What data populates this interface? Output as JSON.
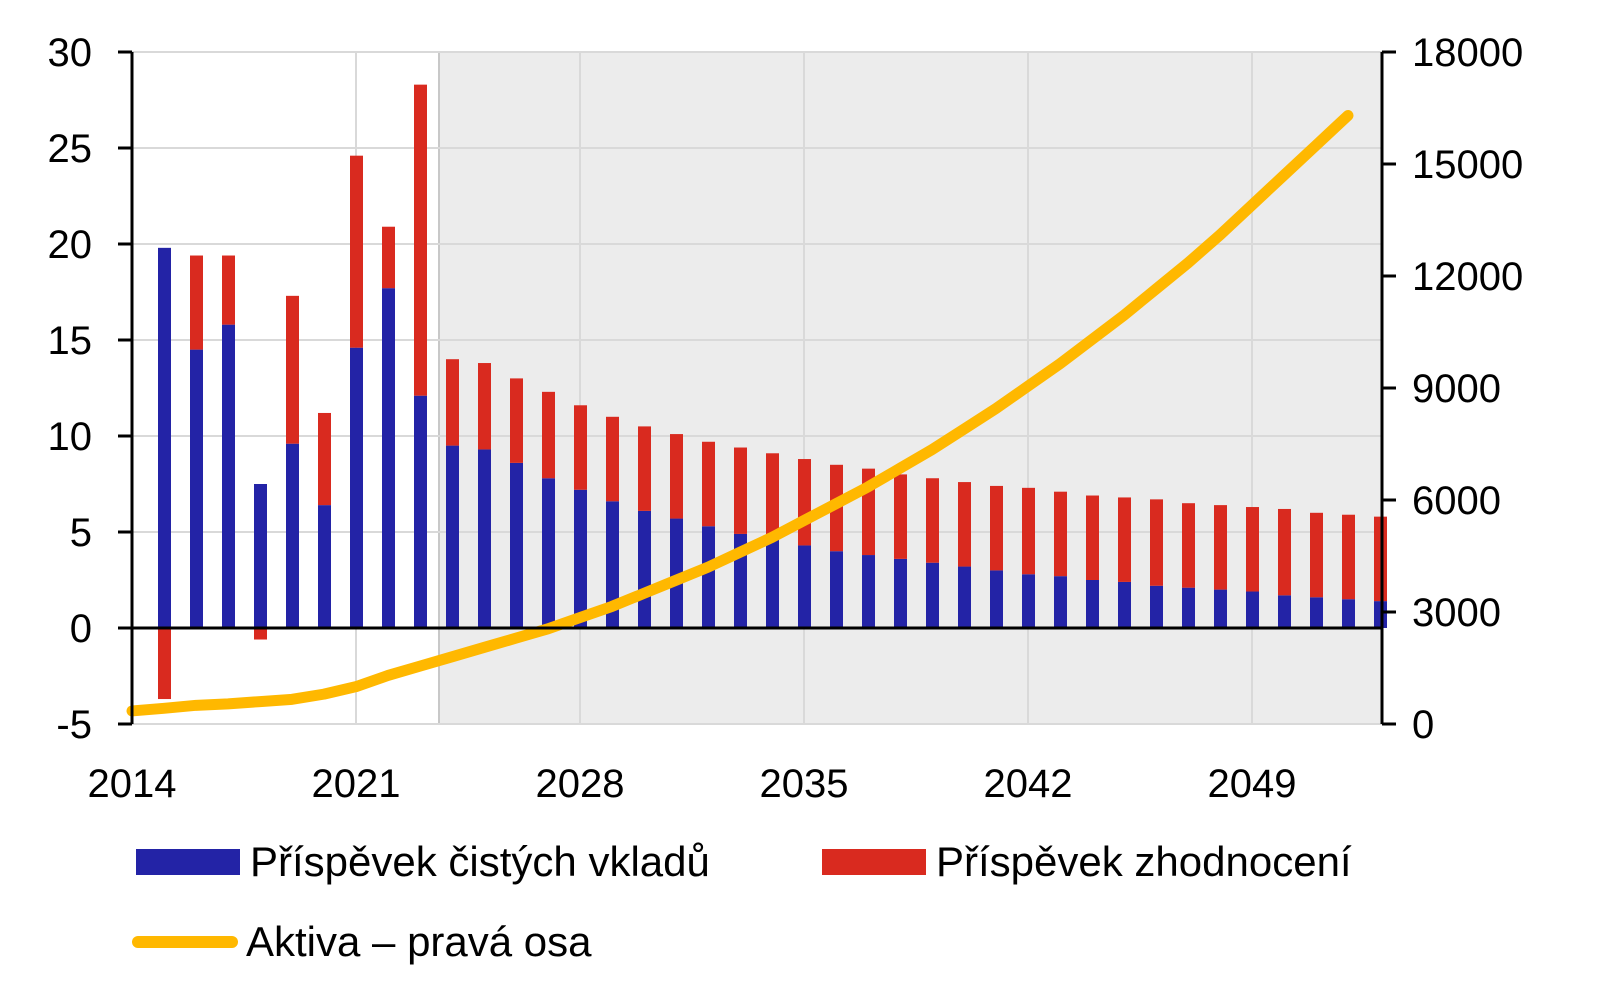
{
  "chart_data": {
    "type": "bar",
    "subtype": "stacked bar with line on secondary axis",
    "title": "",
    "xlabel": "",
    "ylabel": "",
    "ylabel_right": "",
    "ylim": [
      -5,
      30
    ],
    "ylim_right": [
      0,
      18000
    ],
    "yticks": [
      -5,
      0,
      5,
      10,
      15,
      20,
      25,
      30
    ],
    "yticks_right": [
      0,
      3000,
      6000,
      9000,
      12000,
      15000,
      18000
    ],
    "xticks": [
      "2014",
      "2021",
      "2028",
      "2035",
      "2042",
      "2049"
    ],
    "grid": true,
    "forecast_shading_start": 2024,
    "legend_position": "bottom",
    "categories": [
      2015,
      2016,
      2017,
      2018,
      2019,
      2020,
      2021,
      2022,
      2023,
      2024,
      2025,
      2026,
      2027,
      2028,
      2029,
      2030,
      2031,
      2032,
      2033,
      2034,
      2035,
      2036,
      2037,
      2038,
      2039,
      2040,
      2041,
      2042,
      2043,
      2044,
      2045,
      2046,
      2047,
      2048,
      2049,
      2050,
      2051,
      2052,
      2053
    ],
    "series": [
      {
        "name": "Příspěvek čistých vkladů",
        "type": "bar",
        "axis": "left",
        "color": "#2323a6",
        "values": [
          19.8,
          14.5,
          15.8,
          7.5,
          9.6,
          6.4,
          14.6,
          17.7,
          12.1,
          9.5,
          9.3,
          8.6,
          7.8,
          7.2,
          6.6,
          6.1,
          5.7,
          5.3,
          4.9,
          4.6,
          4.3,
          4.0,
          3.8,
          3.6,
          3.4,
          3.2,
          3.0,
          2.8,
          2.7,
          2.5,
          2.4,
          2.2,
          2.1,
          2.0,
          1.9,
          1.7,
          1.6,
          1.5,
          1.4
        ]
      },
      {
        "name": "Příspěvek zhodnocení",
        "type": "bar",
        "axis": "left",
        "color": "#d92a1f",
        "values": [
          -3.7,
          4.9,
          3.6,
          -0.6,
          7.7,
          4.8,
          10.0,
          3.2,
          16.2,
          4.5,
          4.5,
          4.4,
          4.5,
          4.4,
          4.4,
          4.4,
          4.4,
          4.4,
          4.5,
          4.5,
          4.5,
          4.5,
          4.5,
          4.4,
          4.4,
          4.4,
          4.4,
          4.5,
          4.4,
          4.4,
          4.4,
          4.5,
          4.4,
          4.4,
          4.4,
          4.5,
          4.4,
          4.4,
          4.4
        ]
      },
      {
        "name": "Aktiva – pravá osa",
        "type": "line",
        "axis": "right",
        "color": "#ffb800",
        "x": [
          2014,
          2015,
          2016,
          2017,
          2018,
          2019,
          2020,
          2021,
          2022,
          2023,
          2024,
          2025,
          2026,
          2027,
          2028,
          2029,
          2030,
          2031,
          2032,
          2033,
          2034,
          2035,
          2036,
          2037,
          2038,
          2039,
          2040,
          2041,
          2042,
          2043,
          2044,
          2045,
          2046,
          2047,
          2048,
          2049,
          2050,
          2051,
          2052
        ],
        "values": [
          350,
          420,
          500,
          540,
          600,
          660,
          800,
          1000,
          1300,
          1550,
          1800,
          2050,
          2300,
          2550,
          2850,
          3150,
          3500,
          3850,
          4200,
          4600,
          5000,
          5450,
          5900,
          6350,
          6850,
          7350,
          7900,
          8450,
          9050,
          9650,
          10300,
          10950,
          11650,
          12350,
          13100,
          13900,
          14700,
          15500,
          16300
        ]
      }
    ]
  },
  "legend": {
    "items": [
      {
        "label": "Příspěvek čistých vkladů",
        "color": "#2323a6",
        "kind": "bar"
      },
      {
        "label": "Příspěvek zhodnocení",
        "color": "#d92a1f",
        "kind": "bar"
      },
      {
        "label": "Aktiva – pravá osa",
        "color": "#ffb800",
        "kind": "line"
      }
    ]
  }
}
